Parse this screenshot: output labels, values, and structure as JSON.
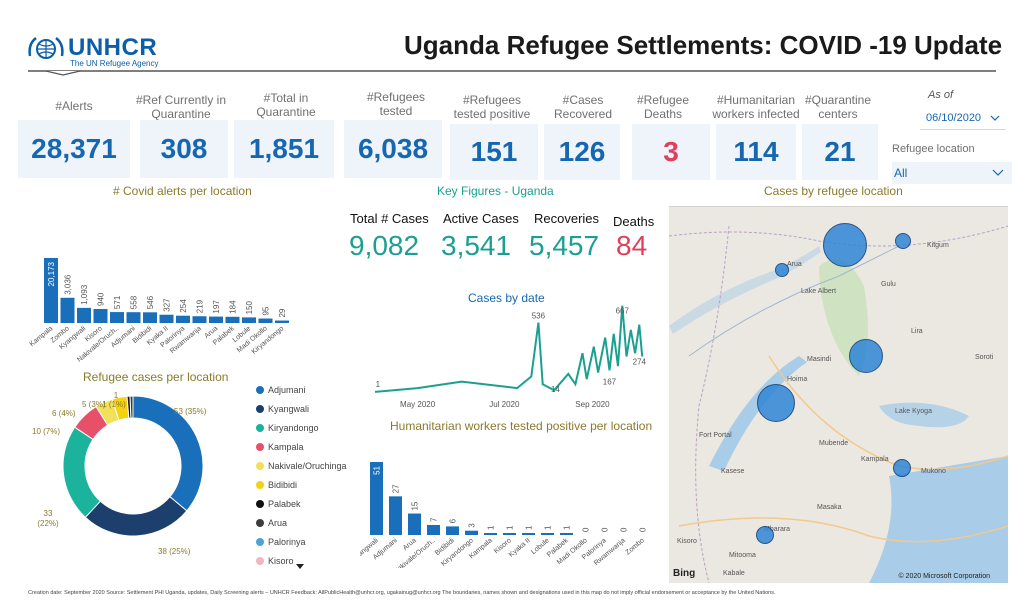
{
  "header": {
    "logo_text": "UNHCR",
    "logo_tagline": "The UN Refugee Agency",
    "title": "Uganda Refugee Settlements: COVID -19 Update"
  },
  "kpis": [
    {
      "label": "#Alerts",
      "value": "28,371"
    },
    {
      "label": "#Ref Currently in Quarantine",
      "value": "308"
    },
    {
      "label": "#Total in Quarantine",
      "value": "1,851"
    },
    {
      "label": "#Refugees tested",
      "value": "6,038"
    },
    {
      "label": "#Refugees tested positive",
      "value": "151"
    },
    {
      "label": "#Cases Recovered",
      "value": "126"
    },
    {
      "label": "#Refugee Deaths",
      "value": "3"
    },
    {
      "label": "#Humanitarian workers infected",
      "value": "114"
    },
    {
      "label": "#Quarantine centers",
      "value": "21"
    }
  ],
  "filters": {
    "as_of_label": "As of",
    "date_value": "06/10/2020",
    "location_label": "Refugee location",
    "location_value": "All"
  },
  "sections": {
    "alerts_title": "# Covid alerts per location",
    "key_figures_title": "Key Figures - Uganda",
    "map_title": "Cases by refugee location",
    "donut_title": "Refugee cases per location",
    "line_title": "Cases by date",
    "hw_title": "Humanitarian workers tested positive per location"
  },
  "key_figures": [
    {
      "label": "Total # Cases",
      "value": "9,082"
    },
    {
      "label": "Active Cases",
      "value": "3,541"
    },
    {
      "label": "Recoveries",
      "value": "5,457"
    },
    {
      "label": "Deaths",
      "value": "84"
    }
  ],
  "legend": [
    {
      "name": "Adjumani",
      "color": "#1a6fbb"
    },
    {
      "name": "Kyangwali",
      "color": "#1c3f6e"
    },
    {
      "name": "Kiryandongo",
      "color": "#1bb39c"
    },
    {
      "name": "Kampala",
      "color": "#e8506a"
    },
    {
      "name": "Nakivale/Oruchinga",
      "color": "#f0e05a"
    },
    {
      "name": "Bidibidi",
      "color": "#f5d20f"
    },
    {
      "name": "Palabek",
      "color": "#111111"
    },
    {
      "name": "Arua",
      "color": "#3d3d3d"
    },
    {
      "name": "Palorinya",
      "color": "#4aa2d9"
    },
    {
      "name": "Kisoro",
      "color": "#f0b7c3"
    }
  ],
  "map": {
    "bing_label": "Bing",
    "copyright": "© 2020 Microsoft Corporation",
    "places": [
      "Arua",
      "Kitgum",
      "Gulu",
      "Lira",
      "Soroti",
      "Masindi",
      "Hoima",
      "Fort Portal",
      "Kasese",
      "Mubende",
      "Kampala",
      "Mukono",
      "Masaka",
      "Mbarara",
      "Kabale",
      "Mitooma",
      "Kisoro",
      "Lake Albert",
      "Lake Kyoga"
    ]
  },
  "footer": "Creation date: September 2020    Source: Settlement PHI Uganda, updates, Daily Screening alerts – UNHCR   Feedback: AllPublicHealth@unhcr.org, ugakainug@unhcr.org   The boundaries, names shown and designations used in this map do not imply official endorsement or acceptance by the United Nations.",
  "chart_data": [
    {
      "type": "bar",
      "title": "# Covid alerts per location",
      "categories": [
        "Kampala",
        "Zombo",
        "Kyangwali",
        "Kisoro",
        "Nakivale/Oruch..",
        "Adjumani",
        "Bidibidi",
        "Kyaka II",
        "Palorinya",
        "Rwamwanja",
        "Arua",
        "Palabek",
        "Lobule",
        "Madi Okollo",
        "Kiryandongo"
      ],
      "values": [
        20173,
        3036,
        1093,
        940,
        571,
        558,
        546,
        327,
        254,
        219,
        197,
        184,
        150,
        95,
        29
      ],
      "value_labels": [
        "20,173",
        "3,036",
        "1,093",
        "940",
        "571",
        "558",
        "546",
        "327",
        "254",
        "219",
        "197",
        "184",
        "150",
        "95",
        "29"
      ],
      "color": "#1a6fbb"
    },
    {
      "type": "pie",
      "title": "Refugee cases per location",
      "labels": [
        "Adjumani",
        "Kyangwali",
        "Kiryandongo",
        "Kampala",
        "Nakivale/Oruchinga",
        "Bidibidi",
        "Palabek",
        "Arua"
      ],
      "values": [
        53,
        38,
        33,
        10,
        6,
        5,
        1,
        1
      ],
      "slice_labels": [
        "53 (35%)",
        "38 (25%)",
        "33 (22%)",
        "10 (7%)",
        "6 (4%)",
        "5 (3%)",
        "1 (1%)",
        "1"
      ]
    },
    {
      "type": "line",
      "title": "Cases by date",
      "x_ticks": [
        "May 2020",
        "Jul 2020",
        "Sep 2020"
      ],
      "annotations": [
        "1",
        "536",
        "14",
        "667",
        "274",
        "167"
      ],
      "points": [
        [
          "2020-04-01",
          1
        ],
        [
          "2020-05-01",
          30
        ],
        [
          "2020-06-01",
          80
        ],
        [
          "2020-07-10",
          30
        ],
        [
          "2020-07-20",
          120
        ],
        [
          "2020-07-25",
          536
        ],
        [
          "2020-07-28",
          60
        ],
        [
          "2020-08-05",
          14
        ],
        [
          "2020-08-15",
          140
        ],
        [
          "2020-08-20",
          60
        ],
        [
          "2020-08-25",
          300
        ],
        [
          "2020-08-28",
          100
        ],
        [
          "2020-09-02",
          350
        ],
        [
          "2020-09-05",
          150
        ],
        [
          "2020-09-10",
          420
        ],
        [
          "2020-09-13",
          167
        ],
        [
          "2020-09-16",
          450
        ],
        [
          "2020-09-19",
          200
        ],
        [
          "2020-09-22",
          667
        ],
        [
          "2020-09-25",
          274
        ],
        [
          "2020-09-28",
          480
        ],
        [
          "2020-10-01",
          300
        ],
        [
          "2020-10-04",
          520
        ],
        [
          "2020-10-06",
          274
        ]
      ],
      "color": "#1ba090"
    },
    {
      "type": "bar",
      "title": "Humanitarian workers tested positive per location",
      "categories": [
        "Kyangwali",
        "Adjumani",
        "Arua",
        "Nakivale/Oruch..",
        "Bidibidi",
        "Kiryandongo",
        "Kampala",
        "Kisoro",
        "Kyaka II",
        "Lobule",
        "Palabek",
        "Madi Okollo",
        "Palorinya",
        "Rwamwanja",
        "Zombo"
      ],
      "values": [
        51,
        27,
        15,
        7,
        6,
        3,
        1,
        1,
        1,
        1,
        1,
        0,
        0,
        0,
        0
      ],
      "color": "#1a6fbb"
    },
    {
      "type": "scatter",
      "title": "Cases by refugee location",
      "points": [
        {
          "name": "Adjumani",
          "value": 53
        },
        {
          "name": "Kyangwali",
          "value": 38
        },
        {
          "name": "Kiryandongo",
          "value": 33
        },
        {
          "name": "Kampala",
          "value": 10
        },
        {
          "name": "Palabek",
          "value": 1
        },
        {
          "name": "Arua",
          "value": 1
        },
        {
          "name": "Kisoro",
          "value": 1
        }
      ],
      "color": "#2f86d6"
    }
  ]
}
